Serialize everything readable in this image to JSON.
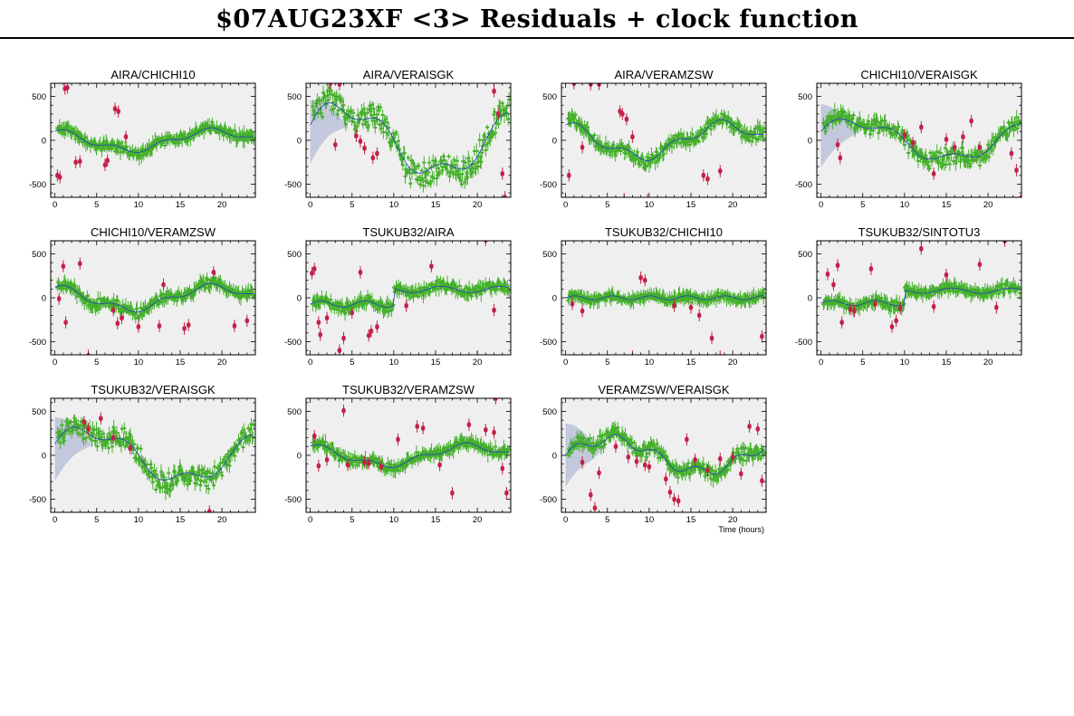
{
  "title": "$07AUG23XF <3> Residuals + clock function",
  "colors": {
    "good": "#44b02a",
    "flagged": "#c42048",
    "clock_line": "#2040c0",
    "clock_band": "#c4c8dc",
    "panel_bg": "#efefef"
  },
  "chart_data": [
    {
      "type": "scatter",
      "title": "AIRA/CHICHI10",
      "xlim": [
        -0.5,
        24
      ],
      "ylim": [
        -650,
        650
      ],
      "xticks": [
        0,
        5,
        10,
        15,
        20
      ],
      "yticks": [
        -500,
        0,
        500
      ],
      "xlabel": "",
      "seed": 11,
      "amp": 120,
      "shape": "slow",
      "band": false,
      "flagged": [
        [
          0.3,
          -400
        ],
        [
          0.6,
          -420
        ],
        [
          1.2,
          590
        ],
        [
          1.5,
          600
        ],
        [
          2.5,
          -250
        ],
        [
          3.0,
          -240
        ],
        [
          6.0,
          -280
        ],
        [
          6.3,
          -230
        ],
        [
          7.2,
          360
        ],
        [
          7.6,
          330
        ],
        [
          8.5,
          40
        ]
      ]
    },
    {
      "type": "scatter",
      "title": "AIRA/VERAISGK",
      "xlim": [
        -0.5,
        24
      ],
      "ylim": [
        -650,
        650
      ],
      "xticks": [
        0,
        5,
        10,
        15,
        20
      ],
      "yticks": [
        -500,
        0,
        500
      ],
      "xlabel": "",
      "seed": 23,
      "amp": 450,
      "shape": "wave",
      "band": true,
      "flagged": [
        [
          2.4,
          650
        ],
        [
          3.0,
          -50
        ],
        [
          3.5,
          640
        ],
        [
          5.5,
          50
        ],
        [
          6.0,
          -10
        ],
        [
          6.5,
          -90
        ],
        [
          7.5,
          -200
        ],
        [
          8.0,
          -150
        ],
        [
          22.0,
          560
        ],
        [
          22.5,
          300
        ],
        [
          23.0,
          -380
        ],
        [
          23.3,
          -650
        ]
      ]
    },
    {
      "type": "scatter",
      "title": "AIRA/VERAMZSW",
      "xlim": [
        -0.5,
        24
      ],
      "ylim": [
        -650,
        650
      ],
      "xticks": [
        0,
        5,
        10,
        15,
        20
      ],
      "yticks": [
        -500,
        0,
        500
      ],
      "xlabel": "",
      "seed": 37,
      "amp": 200,
      "shape": "slow",
      "band": false,
      "flagged": [
        [
          0.4,
          -400
        ],
        [
          1.0,
          650
        ],
        [
          2.0,
          -80
        ],
        [
          3.0,
          640
        ],
        [
          4.0,
          640
        ],
        [
          6.5,
          330
        ],
        [
          6.8,
          300
        ],
        [
          7.0,
          -670
        ],
        [
          7.3,
          240
        ],
        [
          8.0,
          40
        ],
        [
          9.8,
          -680
        ],
        [
          16.5,
          -400
        ],
        [
          17.0,
          -440
        ],
        [
          18.5,
          -350
        ]
      ]
    },
    {
      "type": "scatter",
      "title": "CHICHI10/VERAISGK",
      "xlim": [
        -0.5,
        24
      ],
      "ylim": [
        -650,
        650
      ],
      "xticks": [
        0,
        5,
        10,
        15,
        20
      ],
      "yticks": [
        -500,
        0,
        500
      ],
      "xlabel": "",
      "seed": 41,
      "amp": 260,
      "shape": "wave",
      "band": true,
      "flagged": [
        [
          2.0,
          -50
        ],
        [
          2.3,
          -200
        ],
        [
          10.0,
          60
        ],
        [
          11.0,
          -30
        ],
        [
          12.0,
          150
        ],
        [
          13.5,
          -380
        ],
        [
          15.0,
          10
        ],
        [
          16.0,
          -80
        ],
        [
          17.0,
          40
        ],
        [
          18.0,
          220
        ],
        [
          19.0,
          -80
        ],
        [
          22.8,
          -150
        ],
        [
          23.4,
          -340
        ],
        [
          24.0,
          -650
        ]
      ]
    },
    {
      "type": "scatter",
      "title": "CHICHI10/VERAMZSW",
      "xlim": [
        -0.5,
        24
      ],
      "ylim": [
        -650,
        650
      ],
      "xticks": [
        0,
        5,
        10,
        15,
        20
      ],
      "yticks": [
        -500,
        0,
        500
      ],
      "xlabel": "",
      "seed": 53,
      "amp": 140,
      "shape": "slow",
      "band": false,
      "flagged": [
        [
          0.5,
          -10
        ],
        [
          1.0,
          360
        ],
        [
          1.3,
          -280
        ],
        [
          3.0,
          390
        ],
        [
          4.0,
          -660
        ],
        [
          7.0,
          -140
        ],
        [
          7.5,
          -290
        ],
        [
          8.0,
          -230
        ],
        [
          10.0,
          -330
        ],
        [
          12.5,
          -320
        ],
        [
          13.0,
          150
        ],
        [
          15.5,
          -350
        ],
        [
          16.0,
          -310
        ],
        [
          19.0,
          290
        ],
        [
          21.5,
          -320
        ],
        [
          23.0,
          -260
        ]
      ]
    },
    {
      "type": "scatter",
      "title": "TSUKUB32/AIRA",
      "xlim": [
        -0.5,
        24
      ],
      "ylim": [
        -650,
        650
      ],
      "xticks": [
        0,
        5,
        10,
        15,
        20
      ],
      "yticks": [
        -500,
        0,
        500
      ],
      "xlabel": "",
      "seed": 61,
      "amp": 130,
      "shape": "rise",
      "band": false,
      "flagged": [
        [
          0.2,
          280
        ],
        [
          0.5,
          330
        ],
        [
          1.0,
          -280
        ],
        [
          1.2,
          -420
        ],
        [
          2.0,
          -230
        ],
        [
          3.5,
          -600
        ],
        [
          4.0,
          -460
        ],
        [
          5.0,
          -170
        ],
        [
          6.0,
          290
        ],
        [
          7.0,
          -430
        ],
        [
          7.3,
          -380
        ],
        [
          8.0,
          -330
        ],
        [
          11.5,
          -90
        ],
        [
          14.5,
          360
        ],
        [
          20.0,
          -680
        ],
        [
          21.0,
          660
        ],
        [
          22.0,
          -140
        ]
      ]
    },
    {
      "type": "scatter",
      "title": "TSUKUB32/CHICHI10",
      "xlim": [
        -0.5,
        24
      ],
      "ylim": [
        -650,
        650
      ],
      "xticks": [
        0,
        5,
        10,
        15,
        20
      ],
      "yticks": [
        -500,
        0,
        500
      ],
      "xlabel": "",
      "seed": 71,
      "amp": 50,
      "shape": "flat",
      "band": false,
      "flagged": [
        [
          0.8,
          -70
        ],
        [
          2.0,
          -150
        ],
        [
          8.0,
          -670
        ],
        [
          9.0,
          230
        ],
        [
          9.5,
          200
        ],
        [
          13.0,
          -90
        ],
        [
          15.0,
          -110
        ],
        [
          16.0,
          -200
        ],
        [
          17.5,
          -460
        ],
        [
          18.5,
          -670
        ],
        [
          23.5,
          -440
        ]
      ]
    },
    {
      "type": "scatter",
      "title": "TSUKUB32/SINTOTU3",
      "xlim": [
        -0.5,
        24
      ],
      "ylim": [
        -650,
        650
      ],
      "xticks": [
        0,
        5,
        10,
        15,
        20
      ],
      "yticks": [
        -500,
        0,
        500
      ],
      "xlabel": "",
      "seed": 83,
      "amp": 110,
      "shape": "rise",
      "band": false,
      "flagged": [
        [
          0.8,
          270
        ],
        [
          1.5,
          150
        ],
        [
          2.0,
          370
        ],
        [
          2.5,
          -280
        ],
        [
          3.5,
          -130
        ],
        [
          4.0,
          -150
        ],
        [
          6.0,
          330
        ],
        [
          6.5,
          -70
        ],
        [
          8.5,
          -330
        ],
        [
          9.0,
          -260
        ],
        [
          9.5,
          -120
        ],
        [
          12.0,
          560
        ],
        [
          13.5,
          -100
        ],
        [
          15.0,
          260
        ],
        [
          19.0,
          380
        ],
        [
          21.0,
          -110
        ],
        [
          22.0,
          650
        ]
      ]
    },
    {
      "type": "scatter",
      "title": "TSUKUB32/VERAISGK",
      "xlim": [
        -0.5,
        24
      ],
      "ylim": [
        -650,
        650
      ],
      "xticks": [
        0,
        5,
        10,
        15,
        20
      ],
      "yticks": [
        -500,
        0,
        500
      ],
      "xlabel": "",
      "seed": 97,
      "amp": 340,
      "shape": "wave",
      "band": true,
      "flagged": [
        [
          3.5,
          380
        ],
        [
          4.0,
          300
        ],
        [
          5.5,
          420
        ],
        [
          7.0,
          200
        ],
        [
          9.0,
          80
        ],
        [
          18.5,
          -640
        ]
      ]
    },
    {
      "type": "scatter",
      "title": "TSUKUB32/VERAMZSW",
      "xlim": [
        -0.5,
        24
      ],
      "ylim": [
        -650,
        650
      ],
      "xticks": [
        0,
        5,
        10,
        15,
        20
      ],
      "yticks": [
        -500,
        0,
        500
      ],
      "xlabel": "",
      "seed": 103,
      "amp": 120,
      "shape": "slow",
      "band": false,
      "flagged": [
        [
          0.5,
          220
        ],
        [
          1.0,
          -120
        ],
        [
          2.0,
          -50
        ],
        [
          4.0,
          510
        ],
        [
          4.5,
          -110
        ],
        [
          6.5,
          -80
        ],
        [
          7.0,
          -90
        ],
        [
          8.5,
          -130
        ],
        [
          10.5,
          180
        ],
        [
          12.8,
          330
        ],
        [
          13.5,
          310
        ],
        [
          15.5,
          -110
        ],
        [
          17.0,
          -430
        ],
        [
          19.0,
          350
        ],
        [
          21.0,
          290
        ],
        [
          22.0,
          260
        ],
        [
          23.0,
          -150
        ],
        [
          23.5,
          -430
        ],
        [
          22.2,
          650
        ]
      ]
    },
    {
      "type": "scatter",
      "title": "VERAMZSW/VERAISGK",
      "xlim": [
        -0.5,
        24
      ],
      "ylim": [
        -650,
        650
      ],
      "xticks": [
        0,
        5,
        10,
        15,
        20
      ],
      "yticks": [
        -500,
        0,
        500
      ],
      "xlabel": "Time (hours)",
      "seed": 113,
      "amp": 200,
      "shape": "wave2",
      "band": true,
      "flagged": [
        [
          2.0,
          -80
        ],
        [
          3.0,
          -450
        ],
        [
          3.5,
          -600
        ],
        [
          4.0,
          -200
        ],
        [
          6.0,
          100
        ],
        [
          7.5,
          -20
        ],
        [
          8.5,
          -70
        ],
        [
          9.5,
          -110
        ],
        [
          10.0,
          -130
        ],
        [
          12.0,
          -270
        ],
        [
          12.5,
          -420
        ],
        [
          13.0,
          -500
        ],
        [
          13.5,
          -520
        ],
        [
          14.5,
          180
        ],
        [
          15.5,
          -50
        ],
        [
          17.0,
          -170
        ],
        [
          18.5,
          -40
        ],
        [
          20.0,
          -20
        ],
        [
          21.0,
          -210
        ],
        [
          22.0,
          330
        ],
        [
          23.0,
          300
        ],
        [
          23.5,
          -290
        ]
      ]
    }
  ]
}
